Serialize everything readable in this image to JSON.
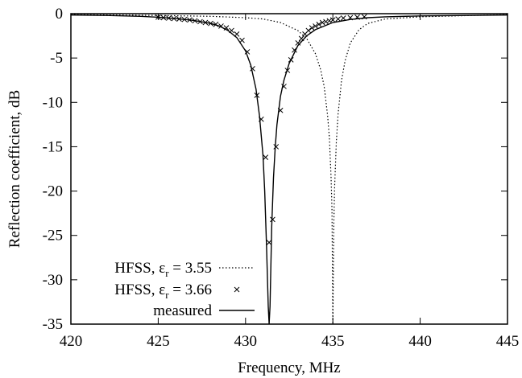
{
  "chart_data": {
    "type": "line",
    "xlabel": "Frequency, MHz",
    "ylabel": "Reflection coefficient, dB",
    "xlim": [
      420,
      445
    ],
    "ylim": [
      -35,
      0
    ],
    "xticks": [
      420,
      425,
      430,
      435,
      440,
      445
    ],
    "yticks": [
      0,
      -5,
      -10,
      -15,
      -20,
      -25,
      -30,
      -35
    ],
    "xtick_labels": [
      "420",
      "425",
      "430",
      "435",
      "440",
      "445"
    ],
    "ytick_labels": [
      "0",
      "-5",
      "-10",
      "-15",
      "-20",
      "-25",
      "-30",
      "-35"
    ],
    "grid": false,
    "legend_position": "bottom-left",
    "series": [
      {
        "name_main": "HFSS, ε",
        "name_sub": "r",
        "name_tail": " = 3.55",
        "style": "dotted",
        "color": "#000000",
        "x": [
          420.0,
          425.0,
          428.0,
          430.0,
          431.0,
          432.0,
          433.0,
          433.5,
          434.0,
          434.3,
          434.5,
          434.7,
          434.8,
          434.9,
          434.95,
          435.0,
          435.05,
          435.1,
          435.2,
          435.3,
          435.5,
          435.7,
          436.0,
          436.5,
          437.0,
          438.0,
          440.0,
          445.0
        ],
        "y": [
          -0.1,
          -0.2,
          -0.3,
          -0.45,
          -0.6,
          -1.0,
          -1.9,
          -2.8,
          -4.5,
          -6.3,
          -8.2,
          -11.5,
          -14.0,
          -18.5,
          -22.0,
          -35.0,
          -24.0,
          -19.5,
          -14.5,
          -11.3,
          -7.5,
          -5.3,
          -3.3,
          -1.8,
          -1.1,
          -0.6,
          -0.35,
          -0.1
        ]
      },
      {
        "name_main": "HFSS, ε",
        "name_sub": "r",
        "name_tail": " = 3.66",
        "style": "markers",
        "marker": "x",
        "color": "#000000",
        "x": [
          425.0,
          425.3,
          425.6,
          425.9,
          426.2,
          426.5,
          426.8,
          427.1,
          427.4,
          427.7,
          428.0,
          428.3,
          428.6,
          428.9,
          429.2,
          429.5,
          429.8,
          430.1,
          430.4,
          430.65,
          430.9,
          431.15,
          431.35,
          431.55,
          431.75,
          432.0,
          432.2,
          432.4,
          432.6,
          432.8,
          433.0,
          433.2,
          433.4,
          433.6,
          433.8,
          434.0,
          434.2,
          434.4,
          434.6,
          434.8,
          435.0,
          435.3,
          435.6,
          436.0,
          436.4,
          436.8
        ],
        "y": [
          -0.4,
          -0.45,
          -0.5,
          -0.55,
          -0.6,
          -0.65,
          -0.7,
          -0.8,
          -0.9,
          -1.0,
          -1.1,
          -1.2,
          -1.4,
          -1.6,
          -1.9,
          -2.3,
          -3.0,
          -4.3,
          -6.2,
          -9.2,
          -11.9,
          -16.2,
          -25.8,
          -23.2,
          -15.0,
          -10.9,
          -8.2,
          -6.4,
          -5.2,
          -4.1,
          -3.3,
          -2.8,
          -2.3,
          -1.9,
          -1.6,
          -1.4,
          -1.2,
          -1.0,
          -0.9,
          -0.8,
          -0.7,
          -0.6,
          -0.5,
          -0.45,
          -0.4,
          -0.35
        ]
      },
      {
        "name": "measured",
        "style": "solid",
        "color": "#000000",
        "x": [
          420.0,
          422.0,
          424.0,
          425.0,
          426.0,
          427.0,
          428.0,
          428.5,
          429.0,
          429.5,
          430.0,
          430.3,
          430.6,
          430.8,
          431.0,
          431.1,
          431.2,
          431.3,
          431.35,
          431.4,
          431.5,
          431.6,
          431.7,
          431.8,
          432.0,
          432.2,
          432.5,
          433.0,
          433.5,
          434.0,
          435.0,
          436.0,
          437.0,
          438.0,
          440.0,
          445.0
        ],
        "y": [
          -0.15,
          -0.2,
          -0.3,
          -0.4,
          -0.55,
          -0.75,
          -1.1,
          -1.4,
          -1.9,
          -2.7,
          -4.2,
          -5.8,
          -8.5,
          -11.5,
          -16.0,
          -20.0,
          -26.0,
          -33.0,
          -35.0,
          -33.0,
          -24.0,
          -18.5,
          -15.0,
          -12.5,
          -9.3,
          -7.5,
          -5.6,
          -3.6,
          -2.5,
          -1.8,
          -1.0,
          -0.65,
          -0.45,
          -0.35,
          -0.25,
          -0.15
        ]
      }
    ]
  }
}
